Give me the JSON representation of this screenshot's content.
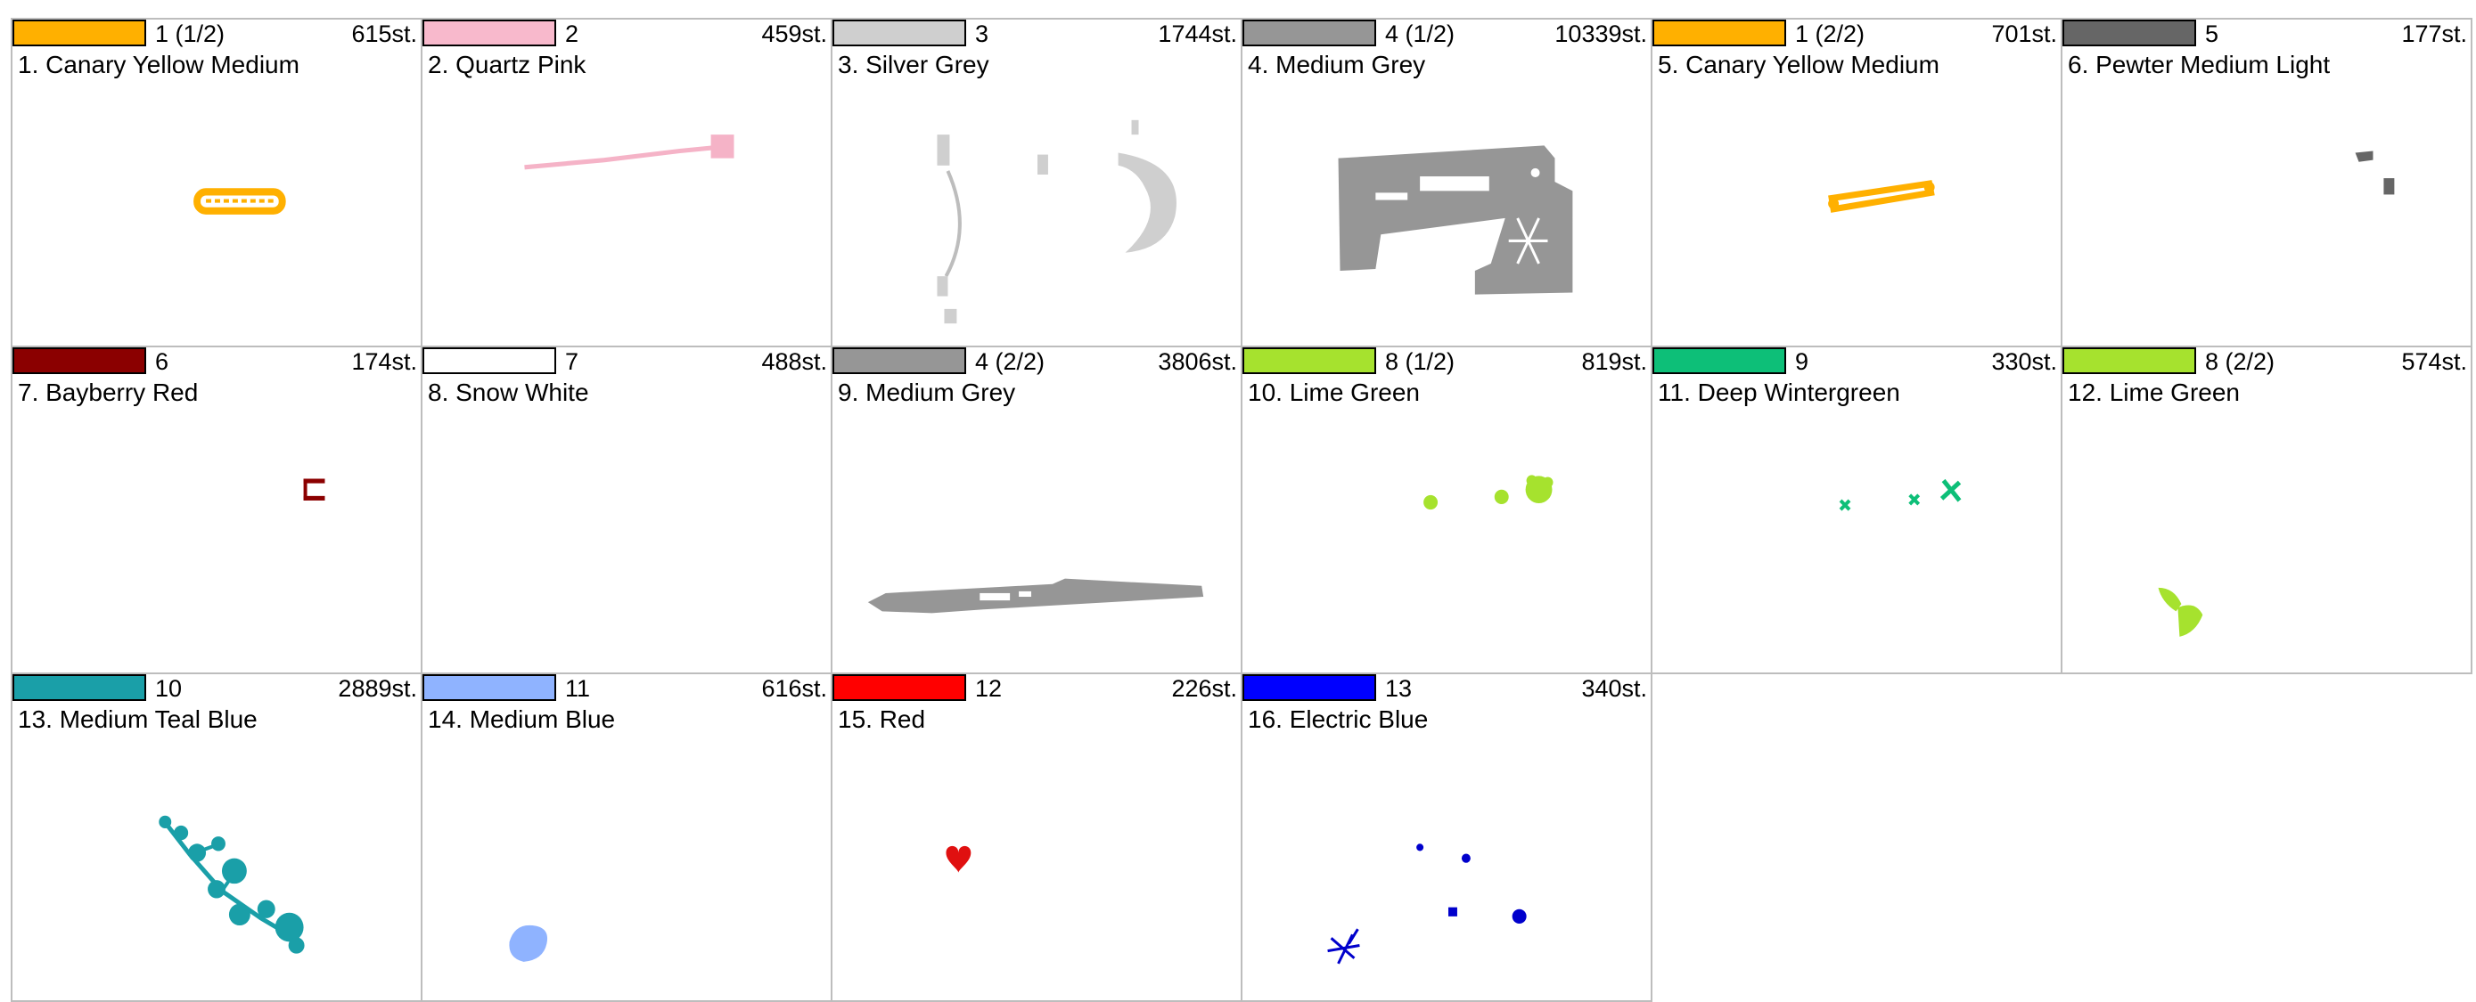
{
  "cells": [
    {
      "color": "#FFB000",
      "number": "1 (1/2)",
      "stitches": "615st.",
      "name": "1. Canary Yellow Medium",
      "motif": "yellow-tube-icon"
    },
    {
      "color": "#F8B9CC",
      "number": "2",
      "stitches": "459st.",
      "name": "2. Quartz Pink",
      "motif": "pink-strand-icon"
    },
    {
      "color": "#CFCFCF",
      "number": "3",
      "stitches": "1744st.",
      "name": "3. Silver Grey",
      "motif": "sewing-machine-details-icon"
    },
    {
      "color": "#969696",
      "number": "4 (1/2)",
      "stitches": "10339st.",
      "name": "4. Medium Grey",
      "motif": "sewing-machine-icon"
    },
    {
      "color": "#FFB000",
      "number": "1 (2/2)",
      "stitches": "701st.",
      "name": "5. Canary Yellow Medium",
      "motif": "yellow-outline-icon"
    },
    {
      "color": "#666666",
      "number": "5",
      "stitches": "177st.",
      "name": "6. Pewter Medium Light",
      "motif": "pewter-marks-icon"
    },
    {
      "color": "#8B0000",
      "number": "6",
      "stitches": "174st.",
      "name": "7. Bayberry Red",
      "motif": "red-marks-icon"
    },
    {
      "color": "#FFFFFF",
      "number": "7",
      "stitches": "488st.",
      "name": "8. Snow White",
      "motif": "blank-icon"
    },
    {
      "color": "#969696",
      "number": "4 (2/2)",
      "stitches": "3806st.",
      "name": "9. Medium Grey",
      "motif": "machine-base-icon"
    },
    {
      "color": "#A6E22E",
      "number": "8 (1/2)",
      "stitches": "819st.",
      "name": "10. Lime Green",
      "motif": "lime-dots-icon"
    },
    {
      "color": "#0DBF78",
      "number": "9",
      "stitches": "330st.",
      "name": "11. Deep Wintergreen",
      "motif": "wintergreen-crosses-icon"
    },
    {
      "color": "#A6E22E",
      "number": "8 (2/2)",
      "stitches": "574st.",
      "name": "12. Lime Green",
      "motif": "leaf-icon"
    },
    {
      "color": "#1A9FA8",
      "number": "10",
      "stitches": "2889st.",
      "name": "13. Medium Teal Blue",
      "motif": "flower-branch-icon"
    },
    {
      "color": "#8FB3FF",
      "number": "11",
      "stitches": "616st.",
      "name": "14. Medium Blue",
      "motif": "blue-blob-icon"
    },
    {
      "color": "#FF0000",
      "number": "12",
      "stitches": "226st.",
      "name": "15. Red",
      "motif": "heart-icon"
    },
    {
      "color": "#0000FF",
      "number": "13",
      "stitches": "340st.",
      "name": "16. Electric Blue",
      "motif": "blue-dots-icon"
    }
  ]
}
